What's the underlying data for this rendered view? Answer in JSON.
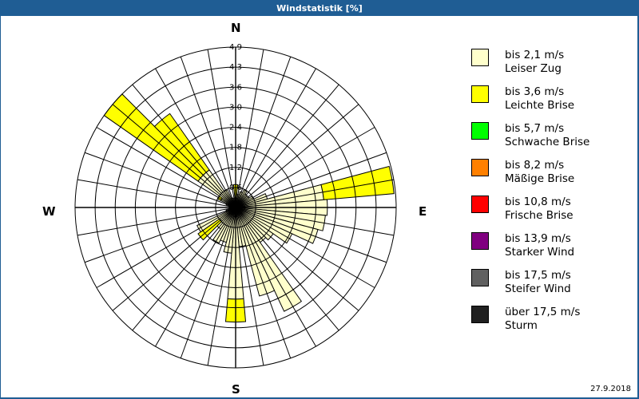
{
  "window": {
    "title": "Windstatistik [%]"
  },
  "footer": {
    "date": "27.9.2018"
  },
  "compass": {
    "n": "N",
    "e": "E",
    "s": "S",
    "w": "W"
  },
  "legend": [
    {
      "speed": "bis 2,1 m/s",
      "name": "Leiser Zug",
      "color": "#ffffcc"
    },
    {
      "speed": "bis 3,6 m/s",
      "name": "Leichte Brise",
      "color": "#ffff00"
    },
    {
      "speed": "bis 5,7 m/s",
      "name": "Schwache Brise",
      "color": "#00ff00"
    },
    {
      "speed": "bis 8,2 m/s",
      "name": "Mäßige Brise",
      "color": "#ff8000"
    },
    {
      "speed": "bis 10,8 m/s",
      "name": "Frische Brise",
      "color": "#ff0000"
    },
    {
      "speed": "bis 13,9 m/s",
      "name": "Starker Wind",
      "color": "#800080"
    },
    {
      "speed": "bis 17,5 m/s",
      "name": "Steifer Wind",
      "color": "#606060"
    },
    {
      "speed": "über 17,5 m/s",
      "name": "Sturm",
      "color": "#202020"
    }
  ],
  "chart_data": {
    "type": "wind-rose",
    "title": "Windstatistik [%]",
    "unit": "%",
    "ring_labels": [
      "0,6",
      "1,2",
      "1,8",
      "2,4",
      "3,0",
      "3,6",
      "4,3",
      "4,9"
    ],
    "rmax": 4.9,
    "sector_width_deg": 10,
    "directions_deg": [
      0,
      10,
      20,
      30,
      40,
      50,
      60,
      70,
      80,
      90,
      100,
      110,
      120,
      130,
      140,
      150,
      160,
      170,
      180,
      190,
      200,
      210,
      220,
      230,
      240,
      250,
      260,
      270,
      280,
      290,
      300,
      310,
      320,
      330,
      340,
      350
    ],
    "series": [
      {
        "name": "bis 2,1 m/s Leiser Zug",
        "color": "#ffffcc",
        "values": [
          0.3,
          0.4,
          0.5,
          0.6,
          0.5,
          0.5,
          0.6,
          1.0,
          2.7,
          2.8,
          2.75,
          2.6,
          1.9,
          1.4,
          1.3,
          3.5,
          2.8,
          1.2,
          2.8,
          1.4,
          1.1,
          1.2,
          0.8,
          0.6,
          1.3,
          0.3,
          0.2,
          0.2,
          0.2,
          0.3,
          0.5,
          1.4,
          1.4,
          0.6,
          0.3,
          0.2
        ]
      },
      {
        "name": "bis 3,6 m/s Leichte Brise",
        "color": "#ffff00",
        "values": [
          0.4,
          0,
          0,
          0,
          0,
          0,
          0,
          0,
          2.15,
          0,
          0,
          0,
          0,
          0,
          0,
          0,
          0,
          0,
          0.7,
          0,
          0,
          0,
          0,
          0.8,
          0,
          0,
          0,
          0,
          0,
          0,
          0.1,
          3.5,
          2.1,
          0,
          0,
          0
        ]
      }
    ],
    "legend_position": "right",
    "grid": true
  }
}
